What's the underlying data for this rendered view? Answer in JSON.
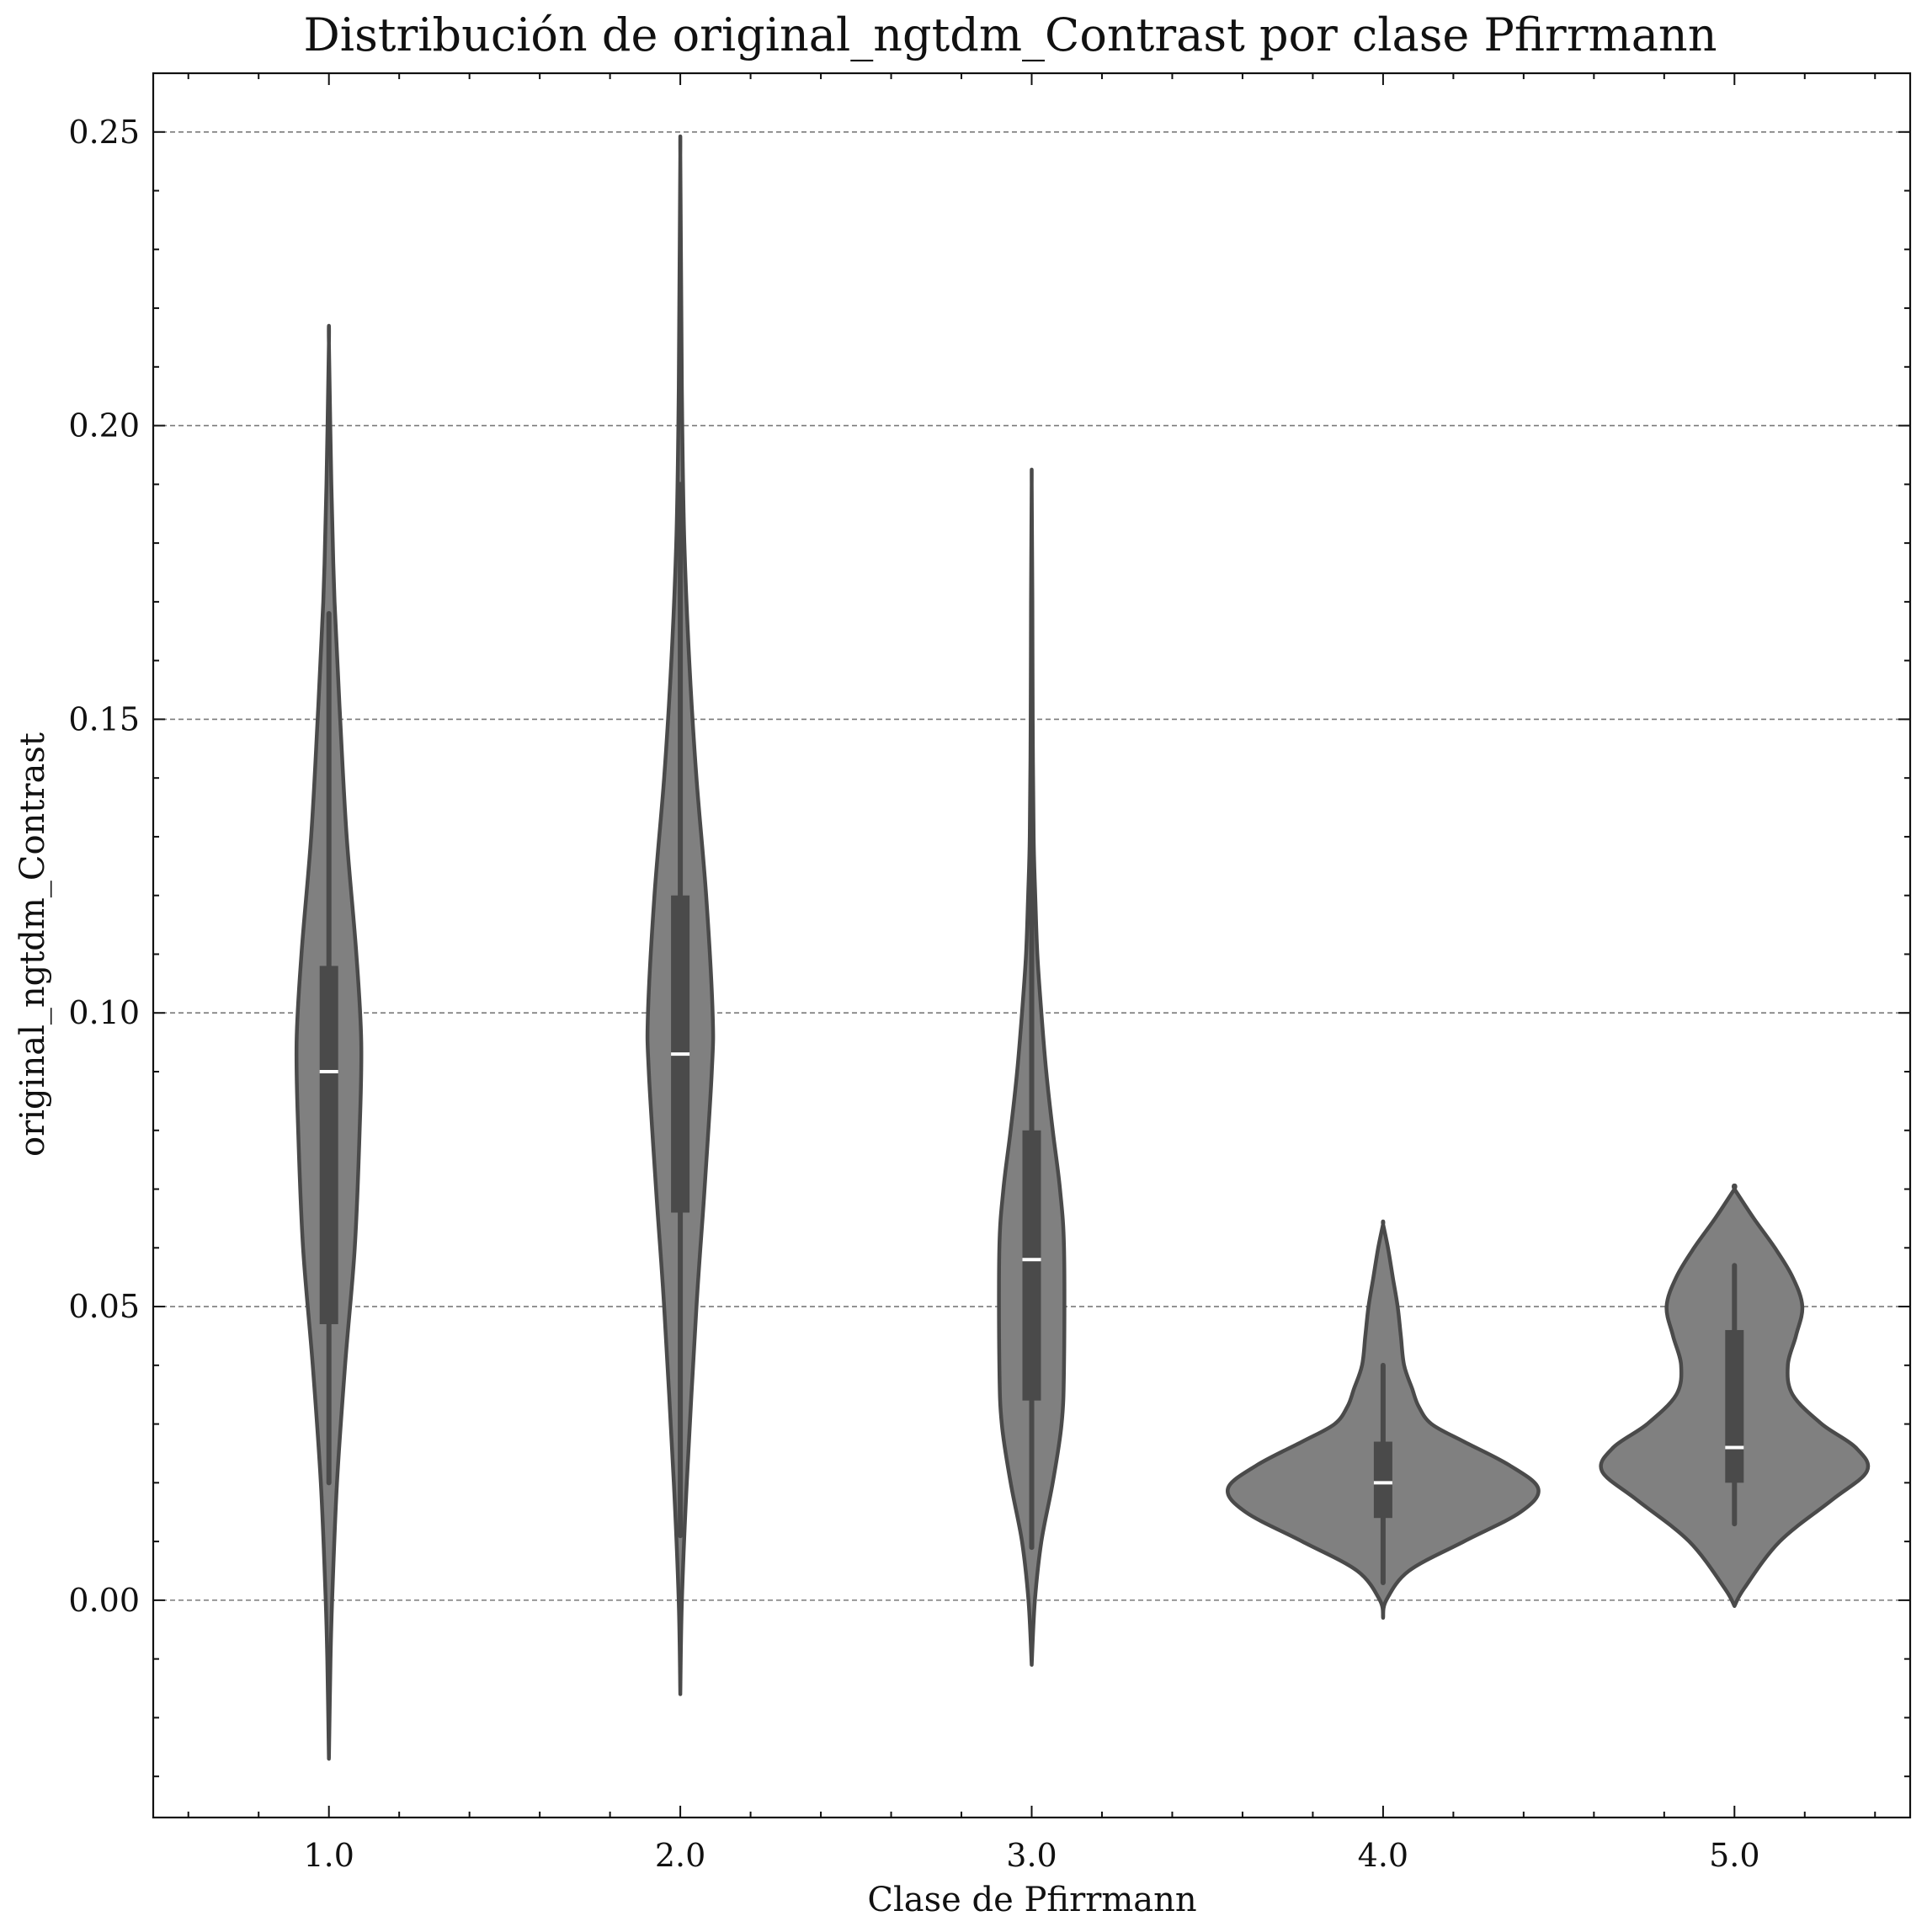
{
  "chart_data": {
    "type": "violin",
    "title": "Distribución de original_ngtdm_Contrast por clase Pfirrmann",
    "xlabel": "Clase de Pfirrmann",
    "ylabel": "original_ngtdm_Contrast",
    "categories": [
      "1.0",
      "2.0",
      "3.0",
      "4.0",
      "5.0"
    ],
    "xlim": [
      0.5,
      5.5
    ],
    "ylim": [
      -0.037,
      0.26
    ],
    "yticks": [
      0.0,
      0.05,
      0.1,
      0.15,
      0.2,
      0.25
    ],
    "ytick_labels": [
      "0.00",
      "0.05",
      "0.10",
      "0.15",
      "0.20",
      "0.25"
    ],
    "grid": "y-dashed",
    "violin_color": "#808080",
    "edge_color": "#4a4a4a",
    "median_color": "#ffffff",
    "groups": [
      {
        "category": "1.0",
        "kde_min": -0.027,
        "kde_max": 0.214,
        "whisker_low": 0.02,
        "q1": 0.047,
        "median": 0.09,
        "q3": 0.108,
        "whisker_high": 0.168,
        "density": [
          [
            -0.027,
            0.0
          ],
          [
            -0.01,
            0.01
          ],
          [
            0.0,
            0.02
          ],
          [
            0.02,
            0.05
          ],
          [
            0.04,
            0.1
          ],
          [
            0.06,
            0.16
          ],
          [
            0.08,
            0.19
          ],
          [
            0.095,
            0.2
          ],
          [
            0.11,
            0.17
          ],
          [
            0.13,
            0.11
          ],
          [
            0.15,
            0.07
          ],
          [
            0.17,
            0.035
          ],
          [
            0.19,
            0.015
          ],
          [
            0.214,
            0.0
          ]
        ]
      },
      {
        "category": "2.0",
        "kde_min": -0.016,
        "kde_max": 0.246,
        "whisker_low": 0.011,
        "q1": 0.066,
        "median": 0.093,
        "q3": 0.12,
        "whisker_high": 0.19,
        "density": [
          [
            -0.016,
            0.0
          ],
          [
            0.0,
            0.01
          ],
          [
            0.02,
            0.04
          ],
          [
            0.05,
            0.1
          ],
          [
            0.07,
            0.15
          ],
          [
            0.09,
            0.195
          ],
          [
            0.1,
            0.2
          ],
          [
            0.12,
            0.16
          ],
          [
            0.14,
            0.1
          ],
          [
            0.16,
            0.055
          ],
          [
            0.18,
            0.025
          ],
          [
            0.2,
            0.012
          ],
          [
            0.22,
            0.006
          ],
          [
            0.246,
            0.0
          ]
        ]
      },
      {
        "category": "3.0",
        "kde_min": -0.011,
        "kde_max": 0.19,
        "whisker_low": 0.009,
        "q1": 0.034,
        "median": 0.058,
        "q3": 0.08,
        "whisker_high": 0.155,
        "density": [
          [
            -0.011,
            0.0
          ],
          [
            0.0,
            0.02
          ],
          [
            0.01,
            0.06
          ],
          [
            0.02,
            0.13
          ],
          [
            0.03,
            0.185
          ],
          [
            0.04,
            0.2
          ],
          [
            0.06,
            0.2
          ],
          [
            0.07,
            0.175
          ],
          [
            0.08,
            0.13
          ],
          [
            0.09,
            0.09
          ],
          [
            0.1,
            0.06
          ],
          [
            0.11,
            0.035
          ],
          [
            0.12,
            0.022
          ],
          [
            0.13,
            0.012
          ],
          [
            0.15,
            0.006
          ],
          [
            0.17,
            0.004
          ],
          [
            0.19,
            0.0
          ]
        ]
      },
      {
        "category": "4.0",
        "kde_min": -0.003,
        "kde_max": 0.064,
        "whisker_low": 0.003,
        "q1": 0.014,
        "median": 0.02,
        "q3": 0.027,
        "whisker_high": 0.04,
        "density": [
          [
            -0.003,
            0.0
          ],
          [
            0.0,
            0.02
          ],
          [
            0.005,
            0.16
          ],
          [
            0.01,
            0.5
          ],
          [
            0.015,
            0.85
          ],
          [
            0.019,
            0.96
          ],
          [
            0.023,
            0.78
          ],
          [
            0.027,
            0.5
          ],
          [
            0.03,
            0.3
          ],
          [
            0.033,
            0.22
          ],
          [
            0.036,
            0.18
          ],
          [
            0.04,
            0.13
          ],
          [
            0.045,
            0.11
          ],
          [
            0.05,
            0.09
          ],
          [
            0.055,
            0.06
          ],
          [
            0.06,
            0.03
          ],
          [
            0.064,
            0.0
          ]
        ]
      },
      {
        "category": "5.0",
        "kde_min": -0.001,
        "kde_max": 0.07,
        "whisker_low": 0.013,
        "q1": 0.02,
        "median": 0.026,
        "q3": 0.046,
        "whisker_high": 0.057,
        "density": [
          [
            -0.001,
            0.0
          ],
          [
            0.002,
            0.06
          ],
          [
            0.01,
            0.28
          ],
          [
            0.017,
            0.6
          ],
          [
            0.022,
            0.82
          ],
          [
            0.026,
            0.75
          ],
          [
            0.03,
            0.54
          ],
          [
            0.035,
            0.36
          ],
          [
            0.04,
            0.33
          ],
          [
            0.045,
            0.38
          ],
          [
            0.05,
            0.42
          ],
          [
            0.055,
            0.36
          ],
          [
            0.06,
            0.25
          ],
          [
            0.065,
            0.12
          ],
          [
            0.07,
            0.0
          ]
        ]
      }
    ]
  }
}
